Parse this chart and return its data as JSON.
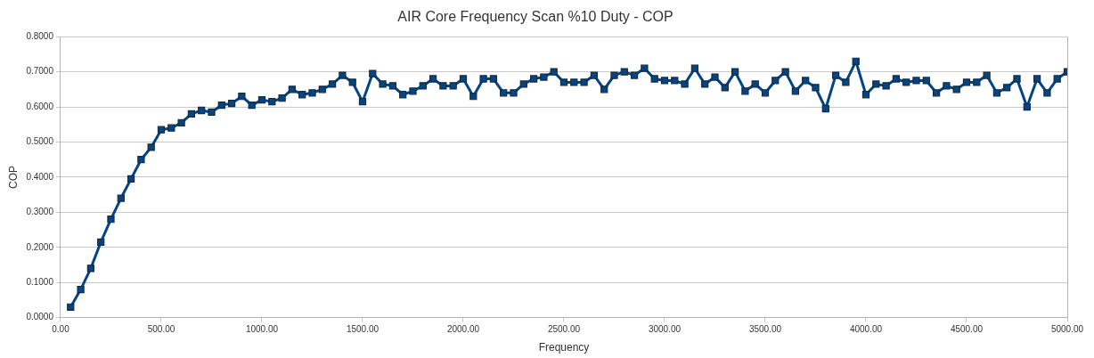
{
  "chart_data": {
    "type": "line",
    "title": "AIR Core Frequency Scan %10 Duty - COP",
    "xlabel": "Frequency",
    "ylabel": "COP",
    "x": [
      50,
      100,
      150,
      200,
      250,
      300,
      350,
      400,
      450,
      500,
      550,
      600,
      650,
      700,
      750,
      800,
      850,
      900,
      950,
      1000,
      1050,
      1100,
      1150,
      1200,
      1250,
      1300,
      1350,
      1400,
      1450,
      1500,
      1550,
      1600,
      1650,
      1700,
      1750,
      1800,
      1850,
      1900,
      1950,
      2000,
      2050,
      2100,
      2150,
      2200,
      2250,
      2300,
      2350,
      2400,
      2450,
      2500,
      2550,
      2600,
      2650,
      2700,
      2750,
      2800,
      2850,
      2900,
      2950,
      3000,
      3050,
      3100,
      3150,
      3200,
      3250,
      3300,
      3350,
      3400,
      3450,
      3500,
      3550,
      3600,
      3650,
      3700,
      3750,
      3800,
      3850,
      3900,
      3950,
      4000,
      4050,
      4100,
      4150,
      4200,
      4250,
      4300,
      4350,
      4400,
      4450,
      4500,
      4550,
      4600,
      4650,
      4700,
      4750,
      4800,
      4850,
      4900,
      4950,
      5000
    ],
    "series": [
      {
        "color": "#004586",
        "values": [
          0.03,
          0.08,
          0.14,
          0.215,
          0.28,
          0.34,
          0.395,
          0.45,
          0.485,
          0.535,
          0.54,
          0.555,
          0.58,
          0.59,
          0.585,
          0.605,
          0.61,
          0.63,
          0.605,
          0.62,
          0.615,
          0.625,
          0.65,
          0.635,
          0.64,
          0.65,
          0.665,
          0.69,
          0.67,
          0.615,
          0.695,
          0.665,
          0.66,
          0.635,
          0.645,
          0.66,
          0.68,
          0.66,
          0.66,
          0.68,
          0.63,
          0.68,
          0.68,
          0.64,
          0.64,
          0.665,
          0.68,
          0.685,
          0.7,
          0.67,
          0.67,
          0.67,
          0.69,
          0.65,
          0.69,
          0.7,
          0.69,
          0.71,
          0.68,
          0.675,
          0.675,
          0.665,
          0.71,
          0.665,
          0.685,
          0.655,
          0.7,
          0.645,
          0.665,
          0.64,
          0.675,
          0.7,
          0.645,
          0.675,
          0.655,
          0.595,
          0.69,
          0.67,
          0.73,
          0.635,
          0.665,
          0.66,
          0.68,
          0.67,
          0.675,
          0.675,
          0.64,
          0.66,
          0.65,
          0.67,
          0.67,
          0.69,
          0.64,
          0.655,
          0.68,
          0.6,
          0.68,
          0.64,
          0.68,
          0.7
        ]
      }
    ],
    "xlim": [
      0,
      5000
    ],
    "xticks": [
      {
        "value": 0,
        "label": "0.00"
      },
      {
        "value": 500,
        "label": "500.00"
      },
      {
        "value": 1000,
        "label": "1000.00"
      },
      {
        "value": 1500,
        "label": "1500.00"
      },
      {
        "value": 2000,
        "label": "2000.00"
      },
      {
        "value": 2500,
        "label": "2500.00"
      },
      {
        "value": 3000,
        "label": "3000.00"
      },
      {
        "value": 3500,
        "label": "3500.00"
      },
      {
        "value": 4000,
        "label": "4000.00"
      },
      {
        "value": 4500,
        "label": "4500.00"
      },
      {
        "value": 5000,
        "label": "5000.00"
      }
    ],
    "ylim": [
      0,
      0.8
    ],
    "yticks": [
      {
        "value": 0,
        "label": "0.0000"
      },
      {
        "value": 0.1,
        "label": "0.1000"
      },
      {
        "value": 0.2,
        "label": "0.2000"
      },
      {
        "value": 0.3,
        "label": "0.3000"
      },
      {
        "value": 0.4,
        "label": "0.4000"
      },
      {
        "value": 0.5,
        "label": "0.5000"
      },
      {
        "value": 0.6,
        "label": "0.6000"
      },
      {
        "value": 0.7,
        "label": "0.7000"
      },
      {
        "value": 0.8,
        "label": "0.8000"
      }
    ],
    "grid": "y",
    "legend": false,
    "marker": "square",
    "line_style": "solid"
  }
}
